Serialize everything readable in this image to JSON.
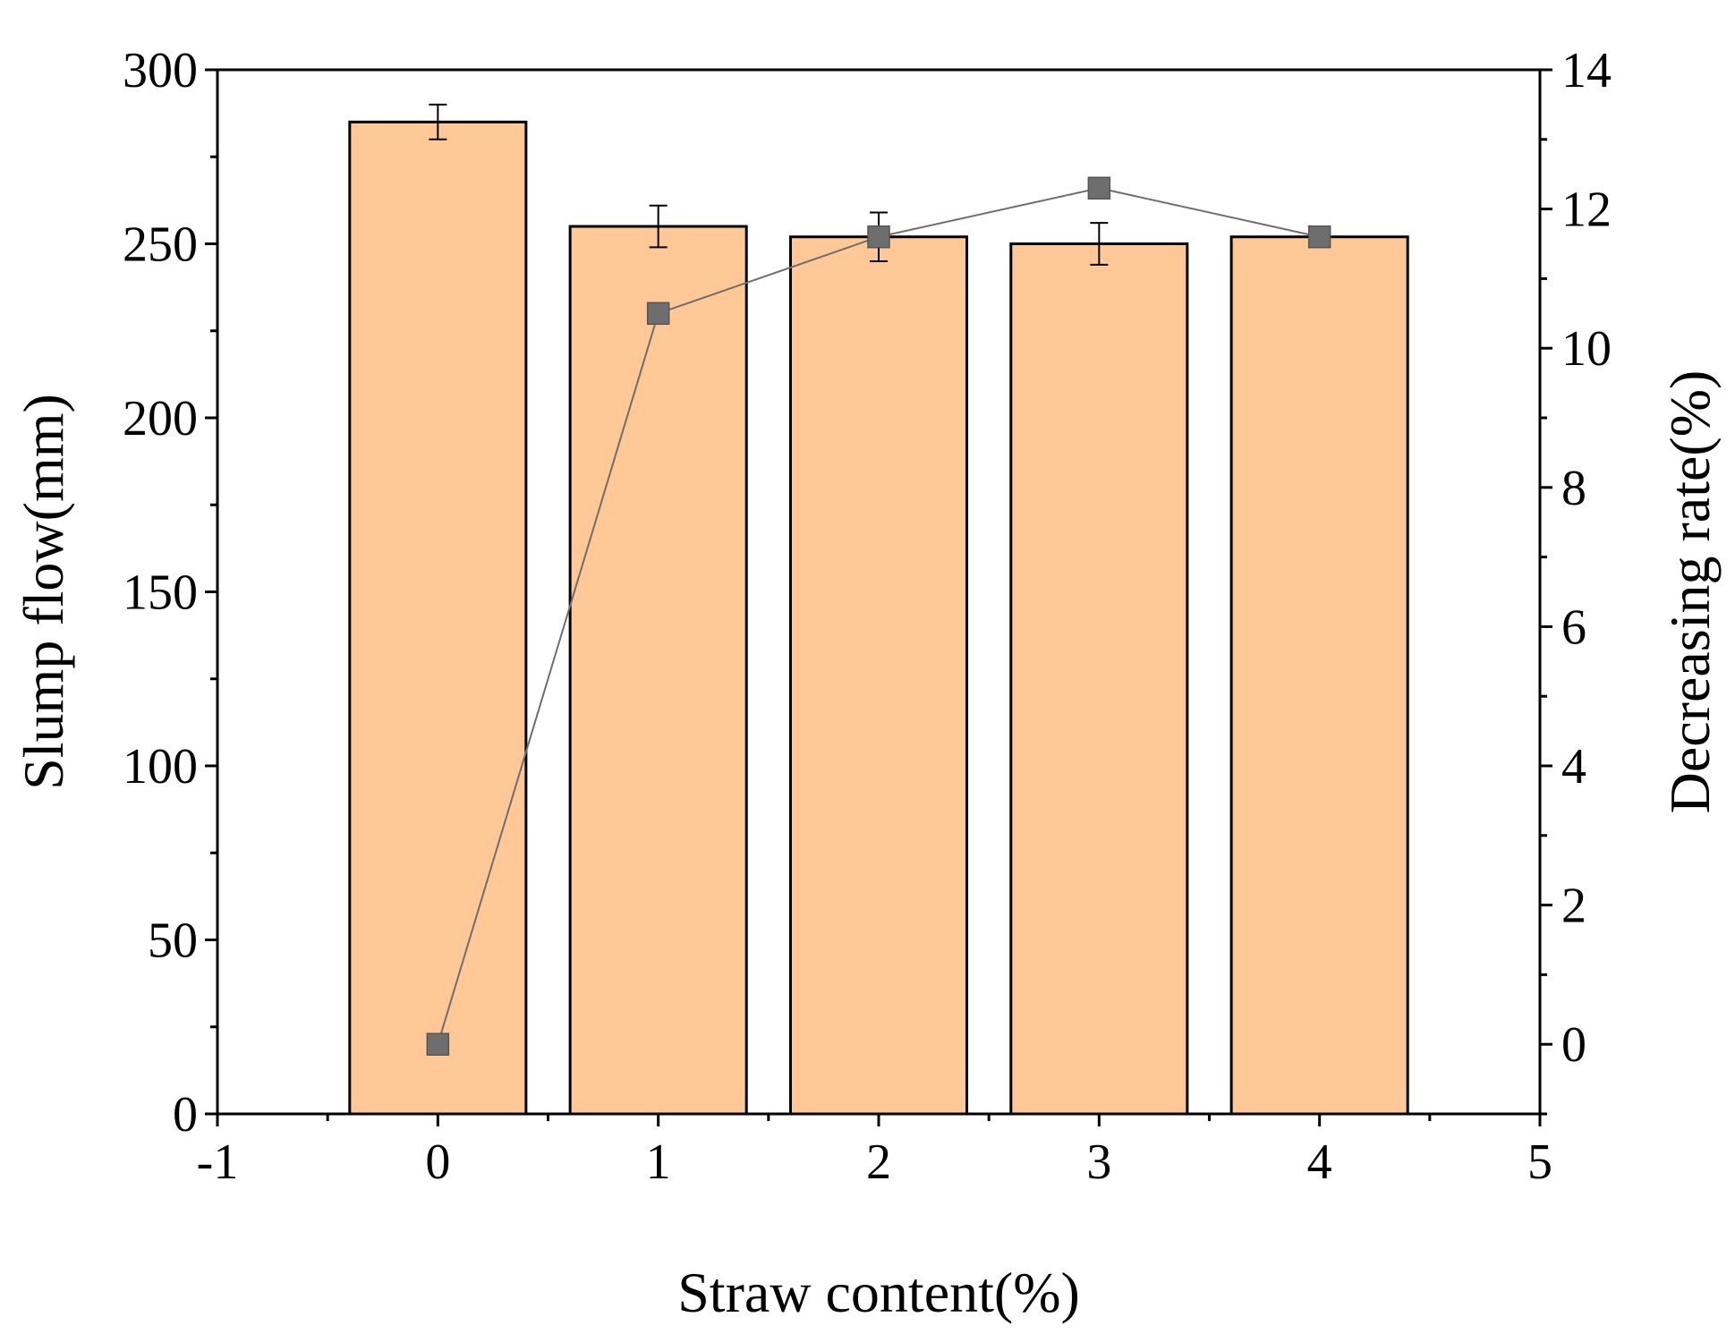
{
  "chart_data": {
    "type": "bar",
    "xlabel": "Straw content(%)",
    "ylabel": "Slump flow(mm)",
    "y2label": "Decreasing rate(%)",
    "xlim": [
      -1,
      5
    ],
    "ylim": [
      0,
      300
    ],
    "y2lim": [
      -1,
      14
    ],
    "xticks": [
      -1,
      0,
      1,
      2,
      3,
      4,
      5
    ],
    "yticks": [
      0,
      50,
      100,
      150,
      200,
      250,
      300
    ],
    "y2ticks": [
      0,
      2,
      4,
      6,
      8,
      10,
      12,
      14
    ],
    "grid": false,
    "series": [
      {
        "type": "bar",
        "axis": "left",
        "color": "#FFC896",
        "x": [
          0,
          1,
          2,
          3,
          4
        ],
        "values": [
          285,
          255,
          252,
          250,
          252
        ],
        "error": [
          5,
          6,
          7,
          6,
          2
        ]
      },
      {
        "type": "line",
        "axis": "right",
        "color": "#6E6E6E",
        "marker": "square",
        "x": [
          0,
          1,
          2,
          3,
          4
        ],
        "values": [
          0,
          10.5,
          11.6,
          12.3,
          11.6
        ]
      }
    ]
  }
}
